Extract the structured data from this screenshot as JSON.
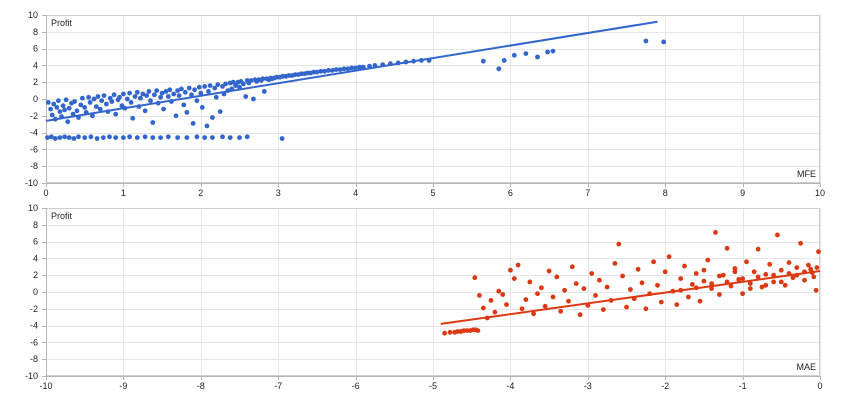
{
  "chart_data": [
    {
      "id": "mfe",
      "type": "scatter",
      "ylabel": "Profit",
      "xlabel": "MFE",
      "xlim": [
        0,
        10
      ],
      "ylim": [
        -10,
        10
      ],
      "xticks": [
        0,
        1,
        2,
        3,
        4,
        5,
        6,
        7,
        8,
        9,
        10
      ],
      "yticks": [
        10,
        8,
        6,
        4,
        2,
        0,
        -2,
        -4,
        -6,
        -8,
        -10
      ],
      "grid": true,
      "color": "#3366cc",
      "trendline": {
        "x": [
          0,
          7.9
        ],
        "y": [
          -2.6,
          9.2
        ]
      },
      "points": [
        [
          0.03,
          -0.4
        ],
        [
          0.06,
          -1.2
        ],
        [
          0.08,
          -1.9
        ],
        [
          0.1,
          -0.6
        ],
        [
          0.12,
          -2.4
        ],
        [
          0.14,
          -1.0
        ],
        [
          0.16,
          -0.2
        ],
        [
          0.18,
          -1.5
        ],
        [
          0.2,
          -2.1
        ],
        [
          0.22,
          -0.8
        ],
        [
          0.24,
          -1.3
        ],
        [
          0.26,
          -0.1
        ],
        [
          0.28,
          -2.7
        ],
        [
          0.3,
          -1.1
        ],
        [
          0.33,
          -0.5
        ],
        [
          0.35,
          -1.8
        ],
        [
          0.37,
          -0.3
        ],
        [
          0.4,
          -1.4
        ],
        [
          0.42,
          -2.2
        ],
        [
          0.45,
          -0.7
        ],
        [
          0.47,
          0.1
        ],
        [
          0.5,
          -1.0
        ],
        [
          0.52,
          -1.6
        ],
        [
          0.55,
          0.2
        ],
        [
          0.57,
          -0.4
        ],
        [
          0.6,
          -2.0
        ],
        [
          0.62,
          0.0
        ],
        [
          0.65,
          -0.9
        ],
        [
          0.67,
          0.3
        ],
        [
          0.7,
          -1.2
        ],
        [
          0.72,
          -0.2
        ],
        [
          0.75,
          0.4
        ],
        [
          0.78,
          -0.6
        ],
        [
          0.8,
          -1.5
        ],
        [
          0.83,
          0.1
        ],
        [
          0.85,
          -0.3
        ],
        [
          0.88,
          0.5
        ],
        [
          0.9,
          -1.8
        ],
        [
          0.93,
          -0.1
        ],
        [
          0.95,
          0.2
        ],
        [
          0.98,
          -0.8
        ],
        [
          1.0,
          0.6
        ],
        [
          1.02,
          -1.1
        ],
        [
          1.05,
          0.0
        ],
        [
          1.08,
          0.7
        ],
        [
          1.1,
          -0.4
        ],
        [
          1.12,
          -2.3
        ],
        [
          1.15,
          0.3
        ],
        [
          1.18,
          0.8
        ],
        [
          1.2,
          -0.9
        ],
        [
          1.22,
          0.1
        ],
        [
          1.25,
          0.6
        ],
        [
          1.28,
          -1.4
        ],
        [
          1.3,
          0.4
        ],
        [
          1.33,
          0.9
        ],
        [
          1.35,
          -0.2
        ],
        [
          1.38,
          -2.8
        ],
        [
          1.4,
          0.5
        ],
        [
          1.43,
          1.0
        ],
        [
          1.45,
          -0.5
        ],
        [
          1.48,
          0.2
        ],
        [
          1.5,
          0.7
        ],
        [
          1.52,
          -1.2
        ],
        [
          1.55,
          0.9
        ],
        [
          1.58,
          0.3
        ],
        [
          1.6,
          1.1
        ],
        [
          1.62,
          -0.3
        ],
        [
          1.65,
          0.6
        ],
        [
          1.68,
          -2.0
        ],
        [
          1.7,
          1.0
        ],
        [
          1.72,
          0.4
        ],
        [
          1.75,
          1.2
        ],
        [
          1.78,
          -0.7
        ],
        [
          1.8,
          0.8
        ],
        [
          1.82,
          -1.6
        ],
        [
          1.85,
          1.3
        ],
        [
          1.88,
          0.5
        ],
        [
          1.9,
          -2.9
        ],
        [
          1.92,
          1.1
        ],
        [
          1.95,
          -0.2
        ],
        [
          1.98,
          1.4
        ],
        [
          2.0,
          0.7
        ],
        [
          2.02,
          -1.0
        ],
        [
          2.05,
          1.5
        ],
        [
          2.08,
          -3.2
        ],
        [
          2.1,
          0.9
        ],
        [
          2.12,
          1.6
        ],
        [
          2.15,
          -2.2
        ],
        [
          2.18,
          1.3
        ],
        [
          2.2,
          0.2
        ],
        [
          2.22,
          1.7
        ],
        [
          2.25,
          -1.5
        ],
        [
          2.28,
          1.5
        ],
        [
          2.3,
          0.6
        ],
        [
          2.32,
          1.8
        ],
        [
          2.35,
          1.0
        ],
        [
          2.38,
          1.9
        ],
        [
          2.4,
          1.2
        ],
        [
          2.42,
          2.0
        ],
        [
          2.45,
          1.6
        ],
        [
          2.48,
          2.0
        ],
        [
          2.5,
          1.4
        ],
        [
          2.52,
          2.1
        ],
        [
          2.55,
          1.8
        ],
        [
          2.58,
          0.3
        ],
        [
          2.6,
          2.2
        ],
        [
          2.62,
          1.9
        ],
        [
          2.65,
          2.2
        ],
        [
          2.68,
          0.0
        ],
        [
          2.7,
          2.3
        ],
        [
          2.72,
          2.1
        ],
        [
          2.75,
          2.3
        ],
        [
          2.78,
          2.2
        ],
        [
          2.8,
          2.4
        ],
        [
          2.82,
          0.9
        ],
        [
          2.85,
          2.4
        ],
        [
          2.88,
          2.3
        ],
        [
          2.9,
          2.5
        ],
        [
          2.92,
          2.4
        ],
        [
          2.95,
          2.5
        ],
        [
          2.98,
          2.6
        ],
        [
          3.02,
          2.6
        ],
        [
          3.06,
          2.7
        ],
        [
          3.1,
          2.7
        ],
        [
          3.14,
          2.8
        ],
        [
          3.18,
          2.8
        ],
        [
          3.22,
          2.9
        ],
        [
          3.26,
          2.9
        ],
        [
          3.3,
          3.0
        ],
        [
          3.34,
          3.0
        ],
        [
          3.38,
          3.1
        ],
        [
          3.42,
          3.1
        ],
        [
          3.46,
          3.2
        ],
        [
          3.5,
          3.2
        ],
        [
          3.55,
          3.3
        ],
        [
          3.6,
          3.3
        ],
        [
          3.65,
          3.4
        ],
        [
          3.7,
          3.4
        ],
        [
          3.75,
          3.5
        ],
        [
          3.8,
          3.5
        ],
        [
          3.85,
          3.6
        ],
        [
          3.9,
          3.6
        ],
        [
          3.95,
          3.7
        ],
        [
          4.0,
          3.7
        ],
        [
          4.05,
          3.8
        ],
        [
          4.1,
          3.8
        ],
        [
          4.18,
          3.9
        ],
        [
          4.25,
          4.0
        ],
        [
          4.35,
          4.1
        ],
        [
          4.45,
          4.2
        ],
        [
          4.55,
          4.3
        ],
        [
          4.65,
          4.4
        ],
        [
          4.75,
          4.5
        ],
        [
          4.85,
          4.6
        ],
        [
          4.95,
          4.6
        ],
        [
          5.65,
          4.5
        ],
        [
          5.85,
          3.6
        ],
        [
          5.92,
          4.6
        ],
        [
          6.05,
          5.2
        ],
        [
          6.2,
          5.4
        ],
        [
          6.35,
          5.0
        ],
        [
          6.48,
          5.6
        ],
        [
          6.55,
          5.7
        ],
        [
          7.75,
          6.9
        ],
        [
          7.98,
          6.8
        ],
        [
          0.02,
          -4.6
        ],
        [
          0.07,
          -4.5
        ],
        [
          0.12,
          -4.7
        ],
        [
          0.18,
          -4.6
        ],
        [
          0.24,
          -4.5
        ],
        [
          0.3,
          -4.6
        ],
        [
          0.36,
          -4.7
        ],
        [
          0.42,
          -4.5
        ],
        [
          0.5,
          -4.6
        ],
        [
          0.58,
          -4.5
        ],
        [
          0.66,
          -4.7
        ],
        [
          0.74,
          -4.6
        ],
        [
          0.82,
          -4.5
        ],
        [
          0.9,
          -4.6
        ],
        [
          1.0,
          -4.6
        ],
        [
          1.08,
          -4.5
        ],
        [
          1.18,
          -4.6
        ],
        [
          1.28,
          -4.5
        ],
        [
          1.38,
          -4.6
        ],
        [
          1.48,
          -4.6
        ],
        [
          1.58,
          -4.5
        ],
        [
          1.7,
          -4.6
        ],
        [
          1.82,
          -4.6
        ],
        [
          1.95,
          -4.5
        ],
        [
          2.05,
          -4.6
        ],
        [
          2.15,
          -4.6
        ],
        [
          2.28,
          -4.5
        ],
        [
          2.38,
          -4.6
        ],
        [
          2.5,
          -4.6
        ],
        [
          2.6,
          -4.5
        ],
        [
          3.05,
          -4.7
        ]
      ]
    },
    {
      "id": "mae",
      "type": "scatter",
      "ylabel": "Profit",
      "xlabel": "MAE",
      "xlim": [
        -10,
        0
      ],
      "ylim": [
        -10,
        10
      ],
      "xticks": [
        -10,
        -9,
        -8,
        -7,
        -6,
        -5,
        -4,
        -3,
        -2,
        -1,
        0
      ],
      "yticks": [
        10,
        8,
        6,
        4,
        2,
        0,
        -2,
        -4,
        -6,
        -8,
        -10
      ],
      "grid": true,
      "color": "#dc3912",
      "trendline": {
        "x": [
          -4.9,
          0.0
        ],
        "y": [
          -3.8,
          2.5
        ]
      },
      "points": [
        [
          -4.85,
          -4.9
        ],
        [
          -4.78,
          -4.8
        ],
        [
          -4.72,
          -4.8
        ],
        [
          -4.68,
          -4.7
        ],
        [
          -4.64,
          -4.7
        ],
        [
          -4.6,
          -4.6
        ],
        [
          -4.56,
          -4.6
        ],
        [
          -4.52,
          -4.6
        ],
        [
          -4.48,
          -4.5
        ],
        [
          -4.45,
          -4.5
        ],
        [
          -4.42,
          -4.6
        ],
        [
          -4.46,
          1.7
        ],
        [
          -4.4,
          -0.4
        ],
        [
          -4.35,
          -1.9
        ],
        [
          -4.3,
          -3.1
        ],
        [
          -4.25,
          -1.0
        ],
        [
          -4.2,
          -2.4
        ],
        [
          -4.15,
          0.1
        ],
        [
          -4.1,
          -0.3
        ],
        [
          -4.05,
          -1.5
        ],
        [
          -4.0,
          2.6
        ],
        [
          -3.95,
          1.6
        ],
        [
          -3.9,
          3.2
        ],
        [
          -3.85,
          -2.0
        ],
        [
          -3.8,
          -0.9
        ],
        [
          -3.75,
          1.2
        ],
        [
          -3.7,
          -2.6
        ],
        [
          -3.65,
          -0.2
        ],
        [
          -3.6,
          0.5
        ],
        [
          -3.55,
          -1.7
        ],
        [
          -3.5,
          2.5
        ],
        [
          -3.45,
          -0.6
        ],
        [
          -3.4,
          1.8
        ],
        [
          -3.35,
          -2.3
        ],
        [
          -3.3,
          0.2
        ],
        [
          -3.25,
          -1.1
        ],
        [
          -3.2,
          3.0
        ],
        [
          -3.15,
          1.0
        ],
        [
          -3.1,
          -2.7
        ],
        [
          -3.05,
          0.4
        ],
        [
          -3.0,
          -1.6
        ],
        [
          -2.95,
          2.2
        ],
        [
          -2.9,
          -0.4
        ],
        [
          -2.85,
          1.4
        ],
        [
          -2.8,
          -2.1
        ],
        [
          -2.75,
          0.6
        ],
        [
          -2.7,
          -1.0
        ],
        [
          -2.65,
          3.4
        ],
        [
          -2.6,
          5.7
        ],
        [
          -2.55,
          1.9
        ],
        [
          -2.5,
          -1.8
        ],
        [
          -2.45,
          0.3
        ],
        [
          -2.4,
          -0.8
        ],
        [
          -2.35,
          2.7
        ],
        [
          -2.3,
          1.1
        ],
        [
          -2.25,
          -2.0
        ],
        [
          -2.2,
          -0.2
        ],
        [
          -2.15,
          3.6
        ],
        [
          -2.1,
          0.8
        ],
        [
          -2.05,
          -1.2
        ],
        [
          -2.0,
          2.4
        ],
        [
          -1.95,
          4.2
        ],
        [
          -1.9,
          0.1
        ],
        [
          -1.85,
          -1.5
        ],
        [
          -1.8,
          1.6
        ],
        [
          -1.75,
          3.1
        ],
        [
          -1.7,
          -0.6
        ],
        [
          -1.65,
          0.9
        ],
        [
          -1.6,
          2.2
        ],
        [
          -1.55,
          -1.1
        ],
        [
          -1.5,
          1.3
        ],
        [
          -1.45,
          3.8
        ],
        [
          -1.4,
          0.4
        ],
        [
          -1.35,
          7.1
        ],
        [
          -1.3,
          -0.3
        ],
        [
          -1.25,
          2.0
        ],
        [
          -1.2,
          5.2
        ],
        [
          -1.15,
          0.7
        ],
        [
          -1.1,
          2.8
        ],
        [
          -1.05,
          1.5
        ],
        [
          -1.0,
          -0.2
        ],
        [
          -0.95,
          3.6
        ],
        [
          -0.9,
          1.0
        ],
        [
          -0.85,
          2.4
        ],
        [
          -0.8,
          5.1
        ],
        [
          -0.75,
          0.6
        ],
        [
          -0.7,
          2.1
        ],
        [
          -0.65,
          3.3
        ],
        [
          -0.6,
          1.2
        ],
        [
          -0.55,
          6.8
        ],
        [
          -0.5,
          2.6
        ],
        [
          -0.45,
          0.8
        ],
        [
          -0.4,
          3.5
        ],
        [
          -0.35,
          1.7
        ],
        [
          -0.3,
          2.9
        ],
        [
          -0.25,
          5.8
        ],
        [
          -0.2,
          1.4
        ],
        [
          -0.15,
          3.2
        ],
        [
          -0.1,
          2.3
        ],
        [
          -0.05,
          0.2
        ],
        [
          -0.02,
          4.8
        ],
        [
          -1.8,
          0.2
        ],
        [
          -1.6,
          0.5
        ],
        [
          -1.4,
          1.0
        ],
        [
          -1.2,
          1.2
        ],
        [
          -1.0,
          1.6
        ],
        [
          -0.9,
          0.4
        ],
        [
          -0.7,
          0.8
        ],
        [
          -0.5,
          1.2
        ],
        [
          -0.3,
          2.0
        ],
        [
          -0.2,
          2.4
        ],
        [
          -0.12,
          2.7
        ],
        [
          -0.08,
          1.8
        ],
        [
          -0.04,
          2.9
        ],
        [
          -0.6,
          2.0
        ],
        [
          -0.4,
          2.2
        ],
        [
          -0.8,
          1.8
        ],
        [
          -1.1,
          2.4
        ],
        [
          -1.3,
          1.9
        ],
        [
          -1.5,
          2.6
        ]
      ]
    }
  ]
}
